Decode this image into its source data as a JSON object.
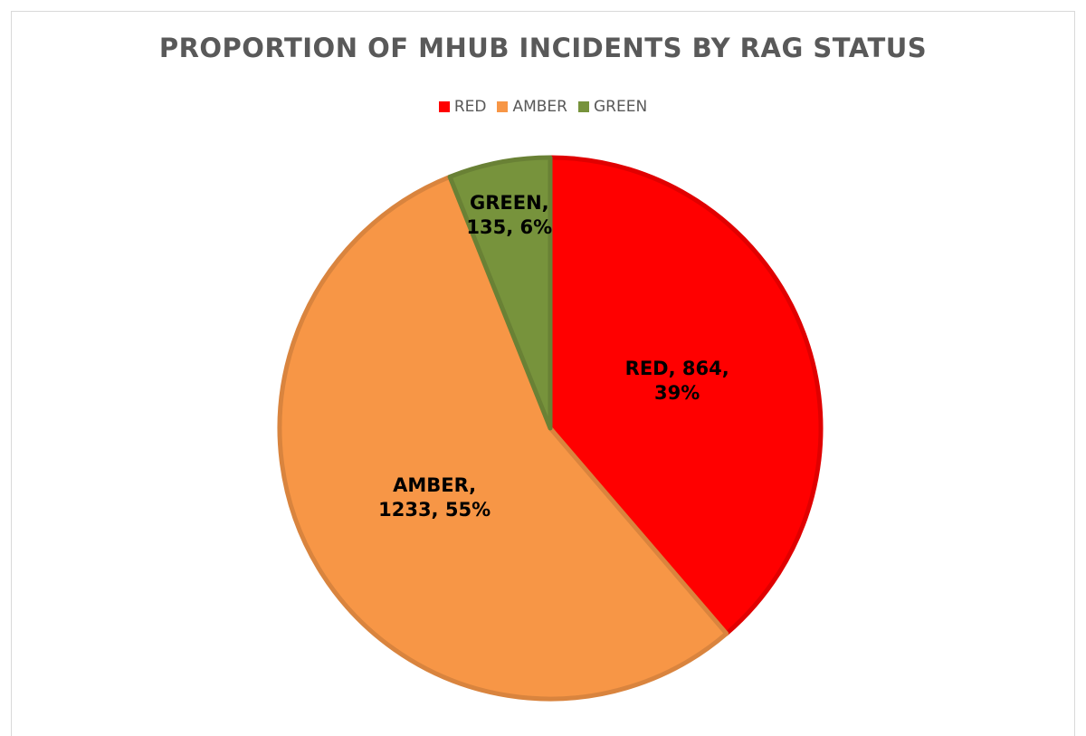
{
  "chart_data": {
    "type": "pie",
    "title": "PROPORTION OF MHUB INCIDENTS BY RAG STATUS",
    "categories": [
      "RED",
      "AMBER",
      "GREEN"
    ],
    "values": [
      864,
      1233,
      135
    ],
    "value_labels": [
      "RED, 864, 39%",
      "AMBER, 1233, 55%",
      "GREEN, 135, 6%"
    ],
    "colors": [
      "#ff0000",
      "#f79646",
      "#77933c"
    ],
    "legend": "top"
  }
}
